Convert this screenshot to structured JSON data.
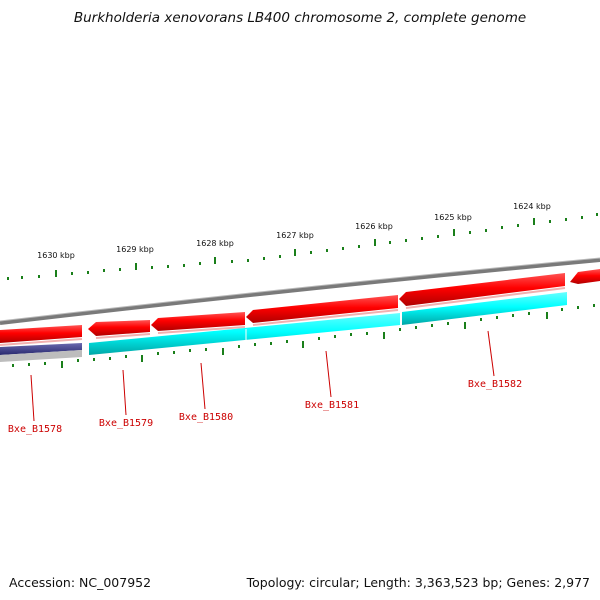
{
  "title": "Burkholderia xenovorans LB400 chromosome 2, complete genome",
  "colors": {
    "forward_gene": "#ff0000",
    "reverse_gene": "#00ffff",
    "pseudo_gene": "#3a3a8c",
    "backbone": "#808080",
    "tick": "#1a7f1a",
    "label": "#cc0000",
    "leader": "#cc0000"
  },
  "kbp_ticks": [
    {
      "label": "1630 kbp"
    },
    {
      "label": "1629 kbp"
    },
    {
      "label": "1628 kbp"
    },
    {
      "label": "1627 kbp"
    },
    {
      "label": "1626 kbp"
    },
    {
      "label": "1625 kbp"
    },
    {
      "label": "1624 kbp"
    }
  ],
  "genes": [
    {
      "id": "Bxe_B1578"
    },
    {
      "id": "Bxe_B1579"
    },
    {
      "id": "Bxe_B1580"
    },
    {
      "id": "Bxe_B1581"
    },
    {
      "id": "Bxe_B1582"
    }
  ],
  "footer": {
    "accession": "Accession: NC_007952",
    "summary": "Topology: circular; Length: 3,363,523 bp; Genes: 2,977"
  }
}
